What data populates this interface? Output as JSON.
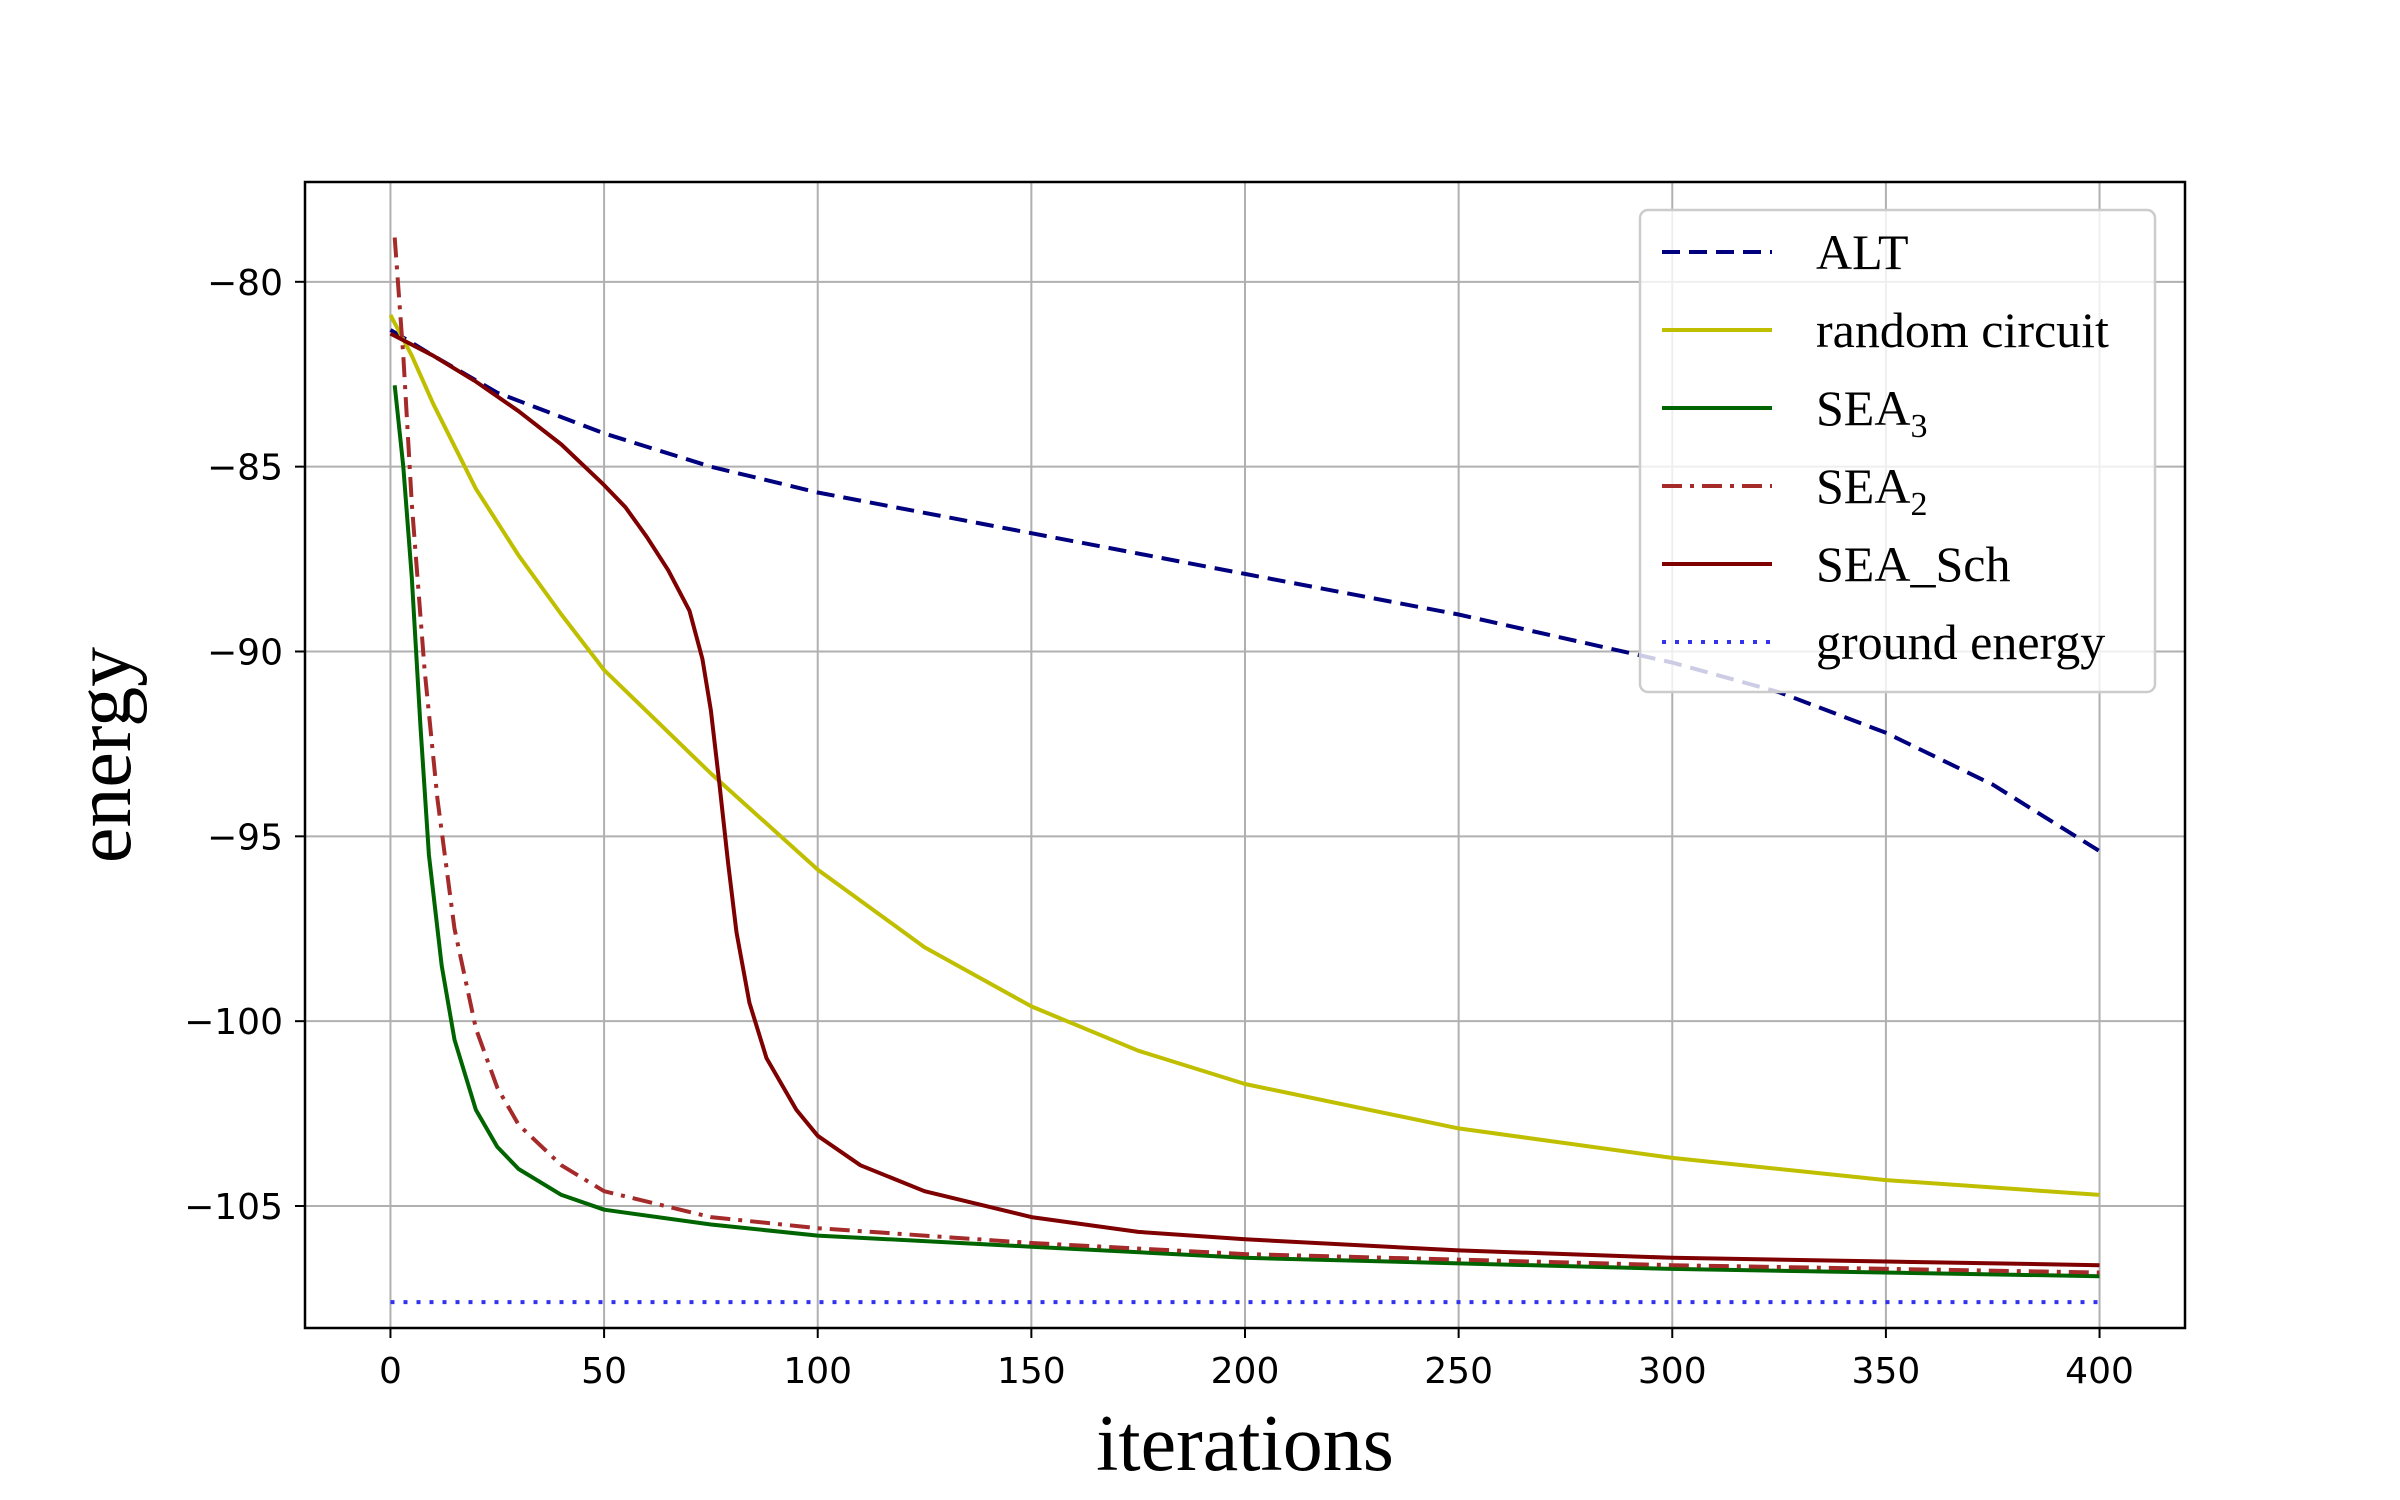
{
  "chart_data": {
    "type": "line",
    "title": "",
    "xlabel": "iterations",
    "ylabel": "energy",
    "xlim": [
      -20,
      420
    ],
    "ylim": [
      -108.3,
      -77.3
    ],
    "xticks": [
      0,
      50,
      100,
      150,
      200,
      250,
      300,
      350,
      400
    ],
    "xtick_labels": [
      "0",
      "50",
      "100",
      "150",
      "200",
      "250",
      "300",
      "350",
      "400"
    ],
    "yticks": [
      -80,
      -85,
      -90,
      -95,
      -100,
      -105
    ],
    "ytick_labels": [
      "−80",
      "−85",
      "−90",
      "−95",
      "−100",
      "−105"
    ],
    "grid": true,
    "legend_position": "top-right",
    "series": [
      {
        "name": "ALT",
        "name_main": "ALT",
        "name_sub": "",
        "color": "#00007f",
        "style": "dashed",
        "points": [
          [
            0,
            -81.3
          ],
          [
            10,
            -82.0
          ],
          [
            25,
            -83.0
          ],
          [
            50,
            -84.1
          ],
          [
            75,
            -85.0
          ],
          [
            100,
            -85.7
          ],
          [
            150,
            -86.8
          ],
          [
            200,
            -87.9
          ],
          [
            250,
            -89.0
          ],
          [
            300,
            -90.3
          ],
          [
            325,
            -91.1
          ],
          [
            350,
            -92.2
          ],
          [
            375,
            -93.6
          ],
          [
            400,
            -95.4
          ]
        ]
      },
      {
        "name": "random circuit",
        "name_main": "random circuit",
        "name_sub": "",
        "color": "#bfbf00",
        "style": "solid",
        "points": [
          [
            0,
            -80.9
          ],
          [
            5,
            -82.0
          ],
          [
            10,
            -83.3
          ],
          [
            20,
            -85.6
          ],
          [
            30,
            -87.4
          ],
          [
            40,
            -89.0
          ],
          [
            50,
            -90.5
          ],
          [
            75,
            -93.3
          ],
          [
            100,
            -95.9
          ],
          [
            125,
            -98.0
          ],
          [
            150,
            -99.6
          ],
          [
            175,
            -100.8
          ],
          [
            200,
            -101.7
          ],
          [
            250,
            -102.9
          ],
          [
            300,
            -103.7
          ],
          [
            350,
            -104.3
          ],
          [
            400,
            -104.7
          ]
        ]
      },
      {
        "name": "SEA3",
        "name_main": "SEA",
        "name_sub": "3",
        "color": "#006400",
        "style": "solid",
        "points": [
          [
            1,
            -82.8
          ],
          [
            3,
            -85.0
          ],
          [
            5,
            -88.0
          ],
          [
            7,
            -92.0
          ],
          [
            9,
            -95.5
          ],
          [
            12,
            -98.5
          ],
          [
            15,
            -100.5
          ],
          [
            20,
            -102.4
          ],
          [
            25,
            -103.4
          ],
          [
            30,
            -104.0
          ],
          [
            40,
            -104.7
          ],
          [
            50,
            -105.1
          ],
          [
            75,
            -105.5
          ],
          [
            100,
            -105.8
          ],
          [
            150,
            -106.1
          ],
          [
            200,
            -106.4
          ],
          [
            300,
            -106.7
          ],
          [
            400,
            -106.9
          ]
        ]
      },
      {
        "name": "SEA2",
        "name_main": "SEA",
        "name_sub": "2",
        "color": "#a52a2a",
        "style": "dashdot",
        "points": [
          [
            1,
            -78.8
          ],
          [
            3,
            -82.0
          ],
          [
            5,
            -86.0
          ],
          [
            8,
            -90.5
          ],
          [
            11,
            -94.0
          ],
          [
            15,
            -97.5
          ],
          [
            20,
            -100.2
          ],
          [
            25,
            -101.8
          ],
          [
            30,
            -102.8
          ],
          [
            40,
            -103.9
          ],
          [
            50,
            -104.6
          ],
          [
            75,
            -105.3
          ],
          [
            100,
            -105.6
          ],
          [
            150,
            -106.0
          ],
          [
            200,
            -106.3
          ],
          [
            300,
            -106.6
          ],
          [
            400,
            -106.8
          ]
        ]
      },
      {
        "name": "SEA_Sch",
        "name_main": "SEA_Sch",
        "name_sub": "",
        "color": "#7f0000",
        "style": "solid",
        "points": [
          [
            0,
            -81.4
          ],
          [
            10,
            -82.0
          ],
          [
            20,
            -82.7
          ],
          [
            30,
            -83.5
          ],
          [
            40,
            -84.4
          ],
          [
            50,
            -85.5
          ],
          [
            55,
            -86.1
          ],
          [
            60,
            -86.9
          ],
          [
            65,
            -87.8
          ],
          [
            70,
            -88.9
          ],
          [
            73,
            -90.2
          ],
          [
            75,
            -91.6
          ],
          [
            77,
            -93.6
          ],
          [
            79,
            -95.7
          ],
          [
            81,
            -97.6
          ],
          [
            84,
            -99.5
          ],
          [
            88,
            -101.0
          ],
          [
            95,
            -102.4
          ],
          [
            100,
            -103.1
          ],
          [
            110,
            -103.9
          ],
          [
            125,
            -104.6
          ],
          [
            150,
            -105.3
          ],
          [
            175,
            -105.7
          ],
          [
            200,
            -105.9
          ],
          [
            250,
            -106.2
          ],
          [
            300,
            -106.4
          ],
          [
            350,
            -106.5
          ],
          [
            400,
            -106.6
          ]
        ]
      },
      {
        "name": "ground energy",
        "name_main": "ground energy",
        "name_sub": "",
        "color": "#3333ee",
        "style": "dotted",
        "points": [
          [
            0,
            -107.6
          ],
          [
            400,
            -107.6
          ]
        ]
      }
    ]
  }
}
